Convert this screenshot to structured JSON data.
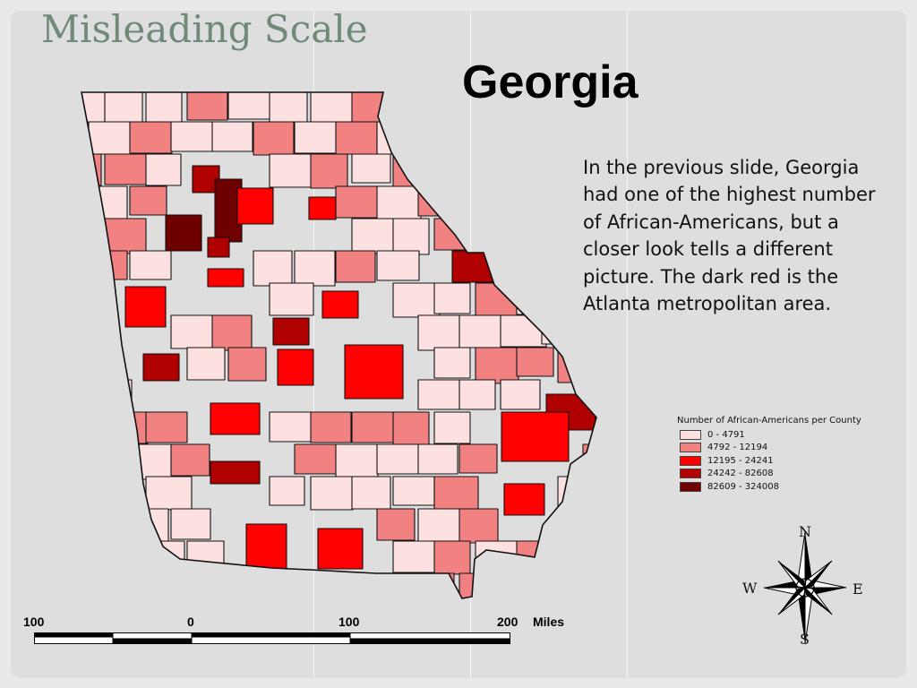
{
  "slide_title": "Misleading Scale",
  "map_title": "Georgia",
  "description": "In the previous slide, Georgia had one of the highest number of African-Americans, but a closer look tells a different picture.  The dark red is the Atlanta metropolitan area.",
  "legend": {
    "title": "Number of African-Americans per County",
    "items": [
      {
        "label": "0 - 4791",
        "color": "#fde0e0"
      },
      {
        "label": "4792 - 12194",
        "color": "#f28282"
      },
      {
        "label": "12195 - 24241",
        "color": "#ff0000"
      },
      {
        "label": "24242 - 82608",
        "color": "#b00000"
      },
      {
        "label": "82609 - 324008",
        "color": "#6e0000"
      }
    ]
  },
  "scale": {
    "labels": [
      "100",
      "0",
      "100",
      "200"
    ],
    "unit": "Miles"
  },
  "compass": {
    "n": "N",
    "s": "S",
    "e": "E",
    "w": "W"
  },
  "map_regions": [
    {
      "class": 0
    },
    {
      "class": 1
    },
    {
      "class": 2
    },
    {
      "class": 3
    },
    {
      "class": 4
    }
  ]
}
